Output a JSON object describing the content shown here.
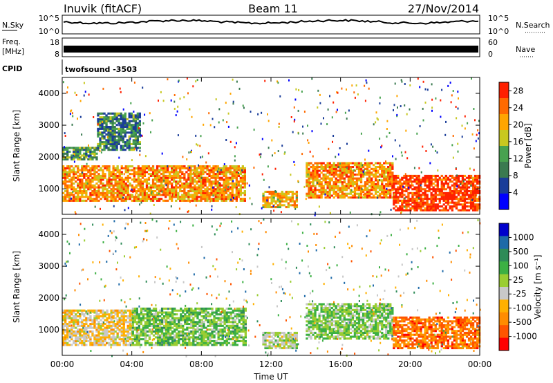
{
  "header": {
    "station": "Inuvik (fitACF)",
    "beam": "Beam 11",
    "date": "27/Nov/2014"
  },
  "noise_panel": {
    "left_label": "N.Sky",
    "right_label": "N.Search",
    "left_ticks": [
      "10^5",
      "10^0"
    ],
    "right_ticks": [
      "10^5",
      "10^0"
    ]
  },
  "freq_panel": {
    "left_label_line1": "Freq.",
    "left_label_line2": "[MHz]",
    "right_label": "Nave",
    "left_ticks": [
      "18",
      "8"
    ],
    "right_ticks": [
      "60",
      "0"
    ]
  },
  "cpid_panel": {
    "label": "CPID",
    "program": "twofsound -3503"
  },
  "colors": {
    "power_scale": [
      "#0000ff",
      "#1a3d99",
      "#3a7a50",
      "#48a24f",
      "#c8c820",
      "#ffa500",
      "#ff6a00",
      "#ff2000"
    ],
    "velocity_scale": [
      "#ff0000",
      "#ff5500",
      "#ff8c00",
      "#ffb000",
      "#c8c8c8",
      "#9acd32",
      "#3cb043",
      "#2e8b57",
      "#1e6aa8",
      "#0000cc"
    ]
  },
  "chart_data": [
    {
      "type": "heatmap",
      "title": "",
      "xlabel": "Time UT",
      "ylabel": "Slant Range [km]",
      "x_ticks": [
        "00:00",
        "04:00",
        "08:00",
        "12:00",
        "16:00",
        "20:00",
        "00:00"
      ],
      "y_ticks": [
        1000,
        2000,
        3000,
        4000
      ],
      "xlim": [
        0,
        24
      ],
      "ylim": [
        200,
        4500
      ],
      "colorbar": {
        "label": "Power [dB]",
        "ticks": [
          4,
          8,
          12,
          16,
          20,
          24,
          28
        ],
        "range": [
          0,
          30
        ]
      },
      "bands": [
        {
          "t0": 0.0,
          "t1": 10.5,
          "r0": 600,
          "r1": 1700,
          "value": 22
        },
        {
          "t0": 0.0,
          "t1": 2.0,
          "r0": 1900,
          "r1": 2300,
          "value": 12
        },
        {
          "t0": 2.0,
          "t1": 4.5,
          "r0": 2200,
          "r1": 3400,
          "value": 10
        },
        {
          "t0": 11.5,
          "t1": 13.5,
          "r0": 400,
          "r1": 900,
          "value": 20
        },
        {
          "t0": 14.0,
          "t1": 19.0,
          "r0": 700,
          "r1": 1800,
          "value": 22
        },
        {
          "t0": 19.0,
          "t1": 24.0,
          "r0": 300,
          "r1": 1400,
          "value": 28
        }
      ]
    },
    {
      "type": "heatmap",
      "title": "",
      "xlabel": "Time UT",
      "ylabel": "Slant Range [km]",
      "x_ticks": [
        "00:00",
        "04:00",
        "08:00",
        "12:00",
        "16:00",
        "20:00",
        "00:00"
      ],
      "y_ticks": [
        1000,
        2000,
        3000,
        4000
      ],
      "xlim": [
        0,
        24
      ],
      "ylim": [
        200,
        4500
      ],
      "colorbar": {
        "label": "Velocity [m s⁻¹]",
        "ticks": [
          1000,
          500,
          100,
          25,
          -25,
          -100,
          -500,
          -1000
        ],
        "range": [
          -1000,
          1000
        ]
      },
      "bands": [
        {
          "t0": 0.0,
          "t1": 4.0,
          "r0": 500,
          "r1": 1600,
          "value": -200
        },
        {
          "t0": 4.0,
          "t1": 10.5,
          "r0": 500,
          "r1": 1700,
          "value": 200
        },
        {
          "t0": 11.5,
          "t1": 13.5,
          "r0": 400,
          "r1": 900,
          "value": 0
        },
        {
          "t0": 14.0,
          "t1": 19.0,
          "r0": 700,
          "r1": 1800,
          "value": 150
        },
        {
          "t0": 19.0,
          "t1": 24.0,
          "r0": 400,
          "r1": 1400,
          "value": -600
        }
      ]
    }
  ]
}
